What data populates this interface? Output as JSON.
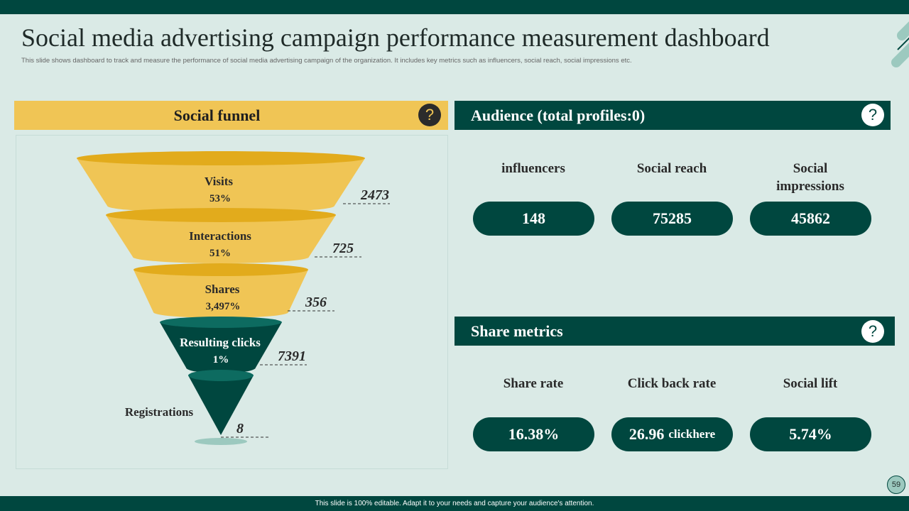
{
  "header": {
    "title": "Social media advertising campaign performance measurement dashboard",
    "subtitle": "This slide shows dashboard to track and measure the performance of social media advertising campaign of the organization. It includes key metrics such as influencers, social reach, social impressions etc."
  },
  "funnel": {
    "title": "Social funnel",
    "help": "?",
    "stages": [
      {
        "label": "Visits",
        "percent": "53%",
        "count": "2473"
      },
      {
        "label": "Interactions",
        "percent": "51%",
        "count": "725"
      },
      {
        "label": "Shares",
        "percent": "3,497%",
        "count": "356"
      },
      {
        "label": "Resulting clicks",
        "percent": "1%",
        "count": "7391"
      },
      {
        "label": "Registrations",
        "count": "8"
      }
    ]
  },
  "audience": {
    "title": "Audience (total profiles:0)",
    "help": "?",
    "metrics": [
      {
        "label": "influencers",
        "value": "148"
      },
      {
        "label": "Social reach",
        "value": "75285"
      },
      {
        "label": "Social impressions",
        "value": "45862"
      }
    ]
  },
  "share": {
    "title": "Share metrics",
    "help": "?",
    "metrics": [
      {
        "label": "Share rate",
        "value": "16.38%"
      },
      {
        "label": "Click back rate",
        "value": "26.96",
        "suffix": "clickhere"
      },
      {
        "label": "Social lift",
        "value": "5.74%"
      }
    ]
  },
  "footer": {
    "text": "This slide is 100% editable.  Adapt it to your needs and capture your audience's attention.",
    "page": "59"
  }
}
